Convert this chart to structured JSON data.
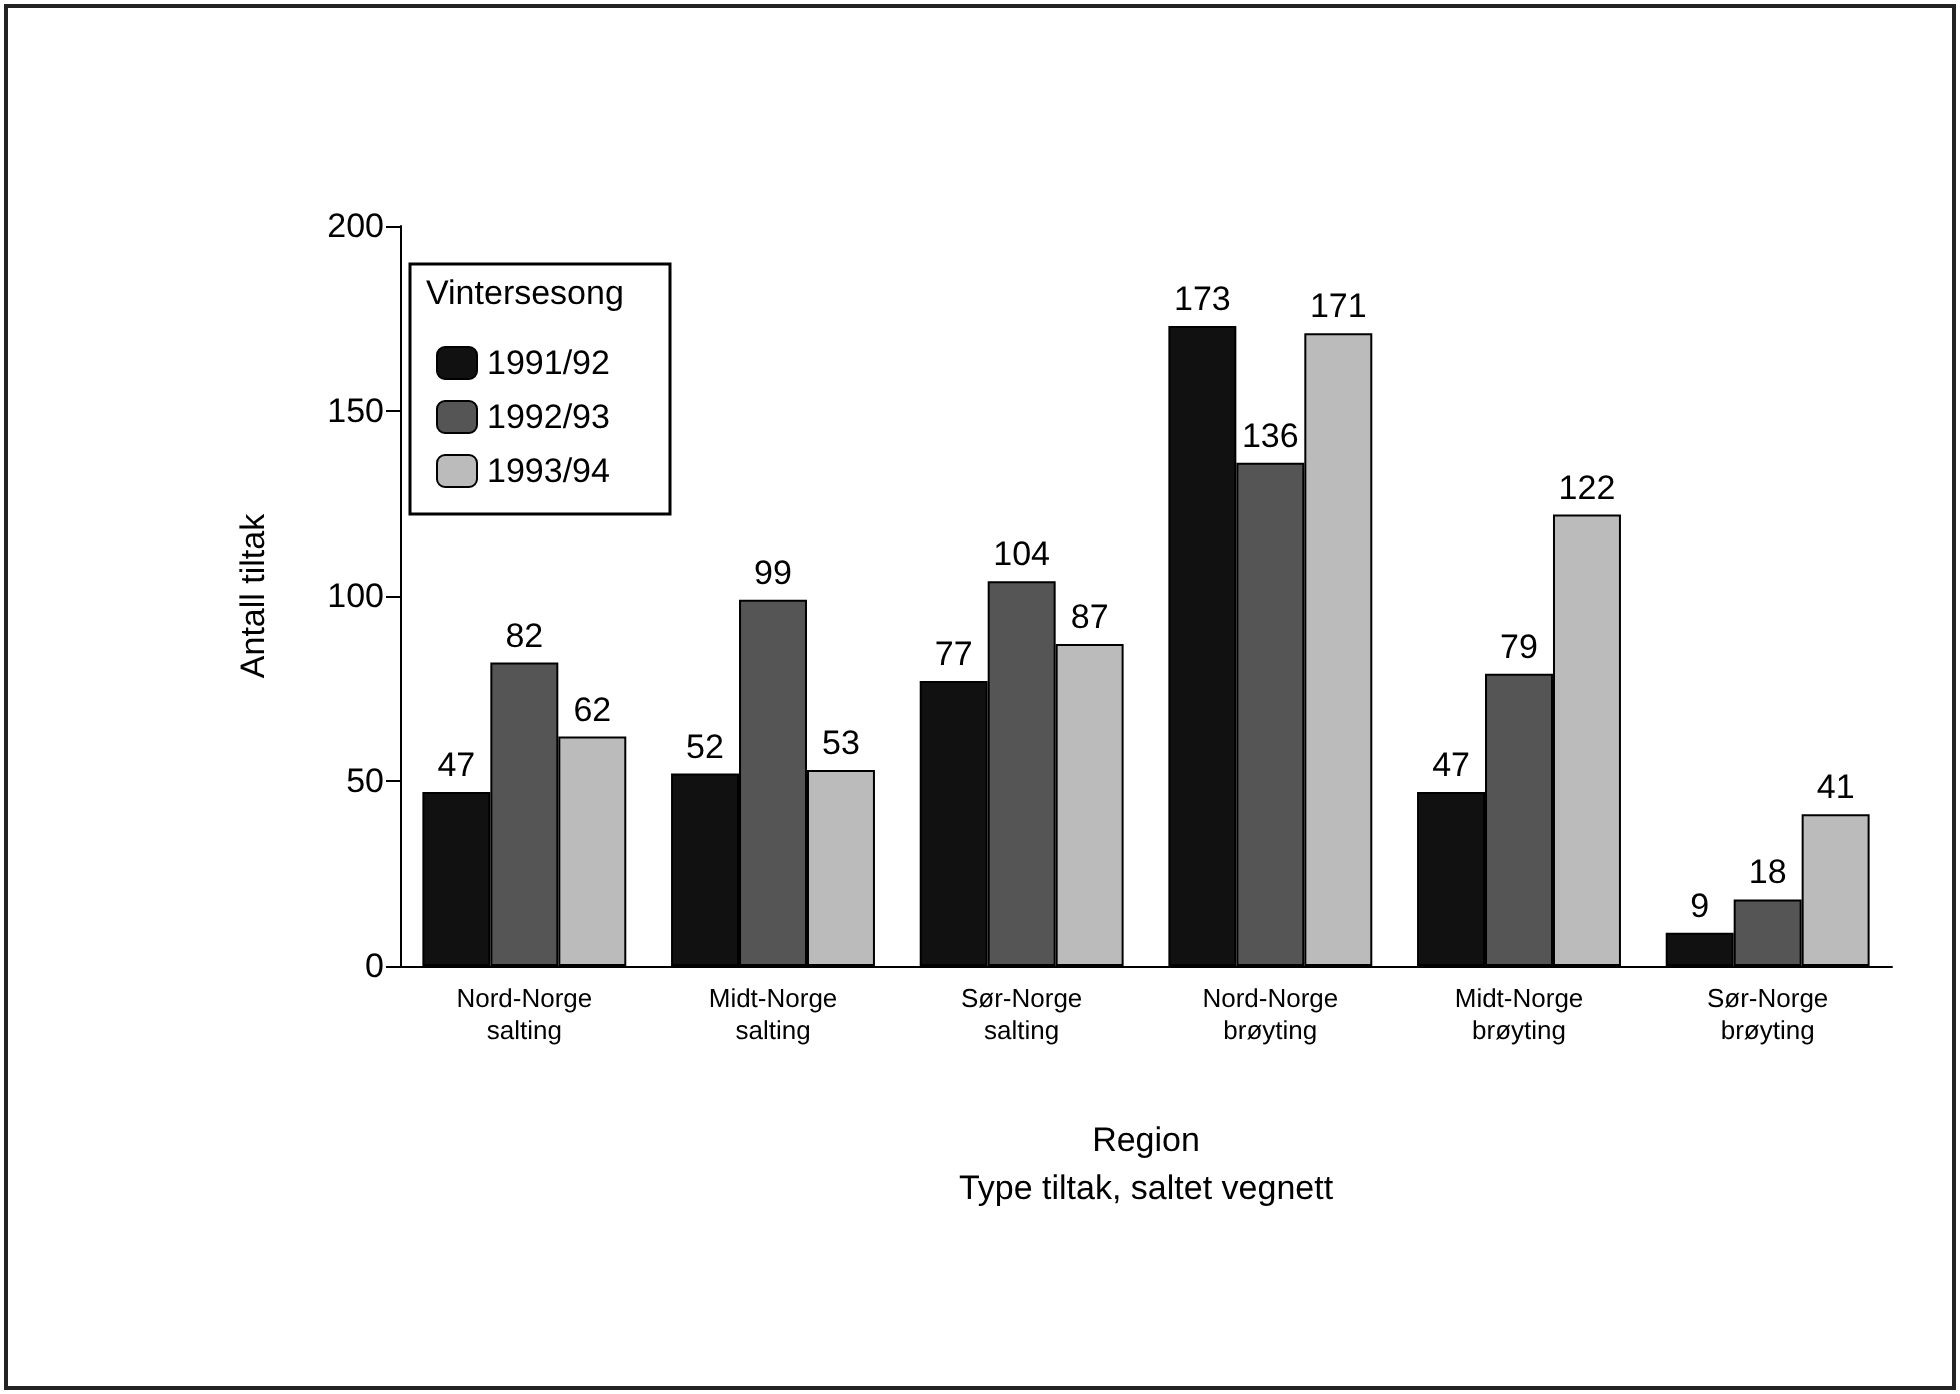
{
  "chart_data": {
    "type": "bar",
    "xlabel": "Region\nType tiltak, saltet vegnett",
    "ylabel": "Antall tiltak",
    "legend_title": "Vintersesong",
    "categories": [
      "Nord-Norge\nsalting",
      "Midt-Norge\nsalting",
      "Sør-Norge\nsalting",
      "Nord-Norge\nbrøyting",
      "Midt-Norge\nbrøyting",
      "Sør-Norge\nbrøyting"
    ],
    "series": [
      {
        "name": "1991/92",
        "color": "#111111",
        "values": [
          47,
          52,
          77,
          173,
          47,
          9
        ]
      },
      {
        "name": "1992/93",
        "color": "#555555",
        "values": [
          82,
          99,
          104,
          136,
          79,
          18
        ]
      },
      {
        "name": "1993/94",
        "color": "#bbbbbb",
        "values": [
          62,
          53,
          87,
          171,
          122,
          41
        ]
      }
    ],
    "ylim": [
      0,
      200
    ],
    "yticks": [
      0,
      50,
      100,
      150,
      200
    ],
    "grid": false,
    "legend": "top left",
    "data_labels": true
  }
}
